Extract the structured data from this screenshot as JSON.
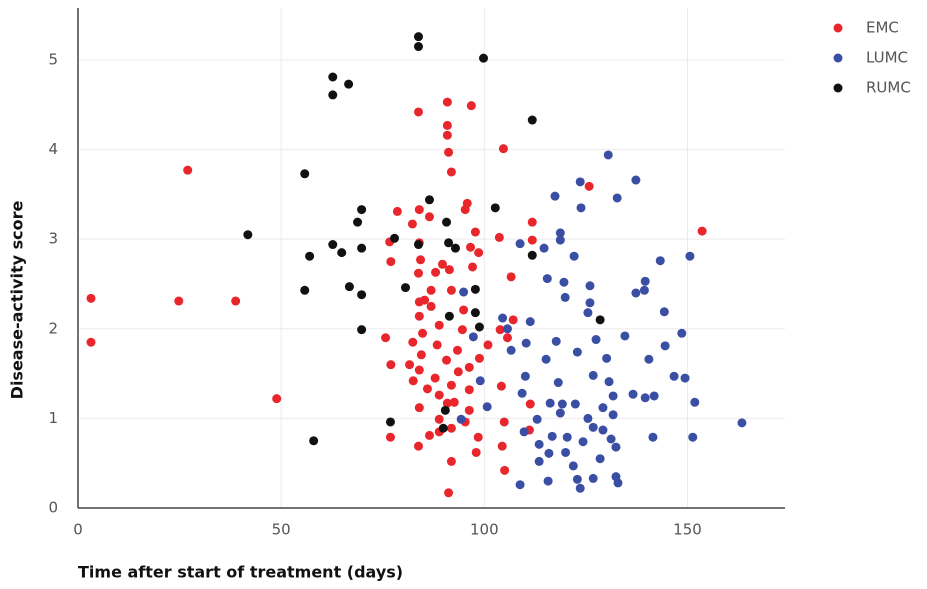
{
  "chart_data": {
    "type": "scatter",
    "x_label": "Time after start of treatment (days)",
    "y_label": "Disease-activity score",
    "xlim": [
      0,
      174
    ],
    "ylim": [
      0,
      5.58
    ],
    "xticks": [
      0,
      50,
      100,
      150
    ],
    "yticks": [
      0,
      1,
      2,
      3,
      4,
      5
    ],
    "grid": true,
    "legend": "top-right",
    "series": [
      {
        "name": "EMC",
        "color": "#e8262b",
        "x": [
          3.2,
          3.2,
          24.8,
          38.8,
          27,
          48.9,
          153.6,
          125.8,
          104.7,
          96.8,
          90.9,
          83.8,
          90.9,
          90.9,
          91.2,
          91.9,
          77,
          75.7,
          77,
          76.9,
          83.8,
          91.2,
          91.9,
          105,
          104.4,
          111.8,
          111.8,
          106.6,
          103.7,
          107.1,
          104.2,
          111.3,
          111.1,
          97.8,
          96.6,
          97.1,
          98.6,
          95.3,
          95.8,
          78.6,
          82.3,
          84,
          86.5,
          84,
          84.3,
          83.8,
          88,
          89.7,
          86.9,
          84,
          86.9,
          84,
          88.9,
          84.8,
          82.4,
          88.4,
          84.5,
          81.6,
          84,
          87.9,
          82.5,
          86,
          88.9,
          90.9,
          84,
          88.9,
          86.5,
          88.9,
          92.6,
          94.9,
          94.6,
          93.4,
          93.6,
          96.3,
          96.3,
          96.3,
          98.5,
          98,
          95.3,
          91.9,
          98.8,
          91.9,
          91.4,
          91.9,
          90.7,
          85.3,
          76.7,
          100.9,
          103.9,
          105.7,
          104.9
        ],
        "values": [
          2.34,
          1.85,
          2.31,
          2.31,
          3.77,
          1.22,
          3.09,
          3.59,
          4.01,
          4.49,
          4.53,
          4.42,
          4.27,
          4.16,
          3.97,
          3.75,
          2.75,
          1.9,
          1.6,
          0.79,
          0.69,
          0.17,
          0.52,
          0.42,
          0.69,
          3.19,
          2.99,
          2.58,
          3.02,
          2.1,
          1.36,
          1.16,
          0.87,
          3.08,
          2.91,
          2.69,
          2.85,
          3.33,
          3.4,
          3.31,
          3.17,
          3.33,
          3.25,
          2.96,
          2.77,
          2.62,
          2.63,
          2.72,
          2.43,
          2.3,
          2.25,
          2.14,
          2.04,
          1.95,
          1.85,
          1.82,
          1.71,
          1.6,
          1.54,
          1.45,
          1.42,
          1.33,
          1.26,
          1.17,
          1.12,
          0.99,
          0.81,
          0.85,
          1.18,
          2.21,
          1.99,
          1.76,
          1.52,
          1.57,
          1.32,
          1.09,
          0.79,
          0.62,
          0.96,
          0.89,
          1.67,
          2.43,
          2.66,
          1.37,
          1.65,
          2.32,
          2.97,
          1.82,
          1.99,
          1.9,
          0.96
        ]
      },
      {
        "name": "LUMC",
        "color": "#3a4fa3",
        "x": [
          130.5,
          137.3,
          123.6,
          132.7,
          117.4,
          123.8,
          118.7,
          118.7,
          108.8,
          114.7,
          143.3,
          150.6,
          122.1,
          115.5,
          119.6,
          139.6,
          139.4,
          137.3,
          126,
          119.9,
          126,
          125.5,
          144.3,
          104.5,
          111.3,
          105.7,
          148.6,
          110.3,
          117.7,
          106.6,
          127.5,
          134.6,
          115.2,
          122.9,
          144.5,
          140.5,
          130.1,
          110.1,
          118.2,
          126.8,
          146.7,
          149.4,
          99,
          130.7,
          109.3,
          136.6,
          131.7,
          139.6,
          141.8,
          151.8,
          116.2,
          119.2,
          122.4,
          129.2,
          100.7,
          113,
          118.7,
          125.5,
          131.7,
          94.3,
          126.8,
          129.2,
          109.8,
          116.7,
          120.4,
          131.2,
          141.5,
          151.3,
          163.4,
          113.5,
          124.3,
          132.4,
          115.9,
          120,
          128.5,
          113.5,
          121.9,
          132.4,
          132.9,
          126.8,
          122.9,
          108.8,
          115.7,
          123.6,
          94.9,
          97.3
        ],
        "values": [
          3.94,
          3.66,
          3.64,
          3.46,
          3.48,
          3.35,
          3.07,
          2.99,
          2.95,
          2.9,
          2.76,
          2.81,
          2.81,
          2.56,
          2.52,
          2.53,
          2.43,
          2.4,
          2.48,
          2.35,
          2.29,
          2.18,
          2.19,
          2.12,
          2.08,
          2.0,
          1.95,
          1.84,
          1.86,
          1.76,
          1.88,
          1.92,
          1.66,
          1.74,
          1.81,
          1.66,
          1.67,
          1.47,
          1.4,
          1.48,
          1.47,
          1.45,
          1.42,
          1.41,
          1.28,
          1.27,
          1.25,
          1.23,
          1.25,
          1.18,
          1.17,
          1.16,
          1.16,
          1.12,
          1.13,
          0.99,
          1.06,
          1.0,
          1.04,
          0.99,
          0.9,
          0.87,
          0.85,
          0.8,
          0.79,
          0.77,
          0.79,
          0.79,
          0.95,
          0.71,
          0.74,
          0.68,
          0.61,
          0.62,
          0.55,
          0.52,
          0.47,
          0.35,
          0.28,
          0.33,
          0.32,
          0.26,
          0.3,
          0.22,
          2.41,
          1.91
        ]
      },
      {
        "name": "RUMC",
        "color": "#111111",
        "x": [
          83.8,
          83.8,
          99.8,
          62.7,
          62.7,
          66.6,
          111.8,
          55.8,
          41.8,
          57,
          55.8,
          62.7,
          64.9,
          68.8,
          69.8,
          69.8,
          66.8,
          69.8,
          69.8,
          77.9,
          80.6,
          86.5,
          83.8,
          90.7,
          91.2,
          92.9,
          97.8,
          97.8,
          98.8,
          102.7,
          111.8,
          128.5,
          76.9,
          58,
          90.4,
          89.9,
          91.4
        ],
        "values": [
          5.26,
          5.15,
          5.02,
          4.81,
          4.61,
          4.73,
          4.33,
          3.73,
          3.05,
          2.81,
          2.43,
          2.94,
          2.85,
          3.19,
          3.33,
          2.9,
          2.47,
          2.38,
          1.99,
          3.01,
          2.46,
          3.44,
          2.94,
          3.19,
          2.96,
          2.9,
          2.44,
          2.18,
          2.02,
          3.35,
          2.82,
          2.1,
          0.96,
          0.75,
          1.09,
          0.89,
          2.14
        ]
      }
    ]
  }
}
